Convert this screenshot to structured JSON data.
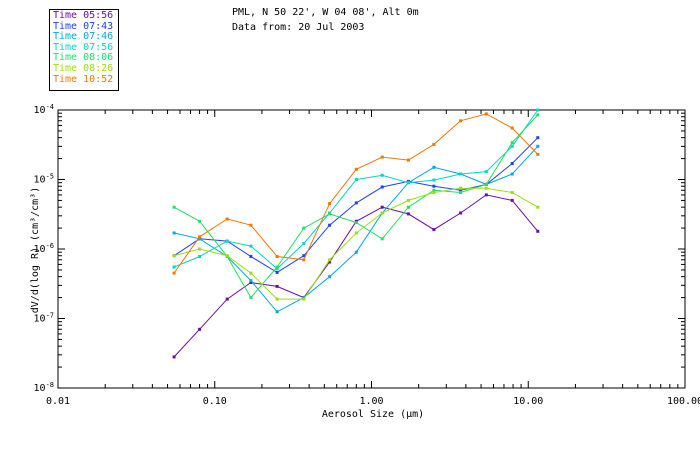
{
  "header": {
    "location": "PML, N 50 22', W 04 08', Alt 0m",
    "date_line": "Data from: 20 Jul 2003"
  },
  "colors": {
    "s0": "#6a0dad",
    "s1": "#1e40ff",
    "s2": "#00a8e0",
    "s3": "#00d8c8",
    "s4": "#22e060",
    "s5": "#99e010",
    "s6": "#f07800"
  },
  "chart_data": {
    "type": "line",
    "xlabel": "Aerosol Size (μm)",
    "ylabel": "dV/d(log R) (cm³/cm³)",
    "xscale": "log",
    "yscale": "log",
    "xlim": [
      0.01,
      100
    ],
    "ylim": [
      1e-08,
      0.0001
    ],
    "x_ticks": [
      "0.01",
      "0.10",
      "1.00",
      "10.00",
      "100.00"
    ],
    "y_ticks": [
      {
        "mant": "10",
        "exp": "-4"
      },
      {
        "mant": "10",
        "exp": "-5"
      },
      {
        "mant": "10",
        "exp": "-6"
      },
      {
        "mant": "10",
        "exp": "-7"
      },
      {
        "mant": "10",
        "exp": "-8"
      }
    ],
    "legend_position": "top-left",
    "x": [
      0.055,
      0.08,
      0.12,
      0.17,
      0.25,
      0.37,
      0.54,
      0.8,
      1.17,
      1.72,
      2.5,
      3.7,
      5.4,
      7.9,
      11.5
    ],
    "series": [
      {
        "name": "Time 05:56",
        "values": [
          2.8e-08,
          7e-08,
          1.9e-07,
          3.3e-07,
          2.9e-07,
          2e-07,
          6.5e-07,
          2.5e-06,
          4e-06,
          3.2e-06,
          1.9e-06,
          3.3e-06,
          6e-06,
          5e-06,
          1.8e-06
        ]
      },
      {
        "name": "Time 07:43",
        "values": [
          8e-07,
          1.4e-06,
          1.3e-06,
          7.8e-07,
          4.6e-07,
          8e-07,
          2.2e-06,
          4.6e-06,
          7.8e-06,
          9.4e-06,
          8e-06,
          7e-06,
          8.5e-06,
          1.7e-05,
          4e-05
        ]
      },
      {
        "name": "Time 07:46",
        "values": [
          1.7e-06,
          1.4e-06,
          7.8e-07,
          3.5e-07,
          1.25e-07,
          2e-07,
          4e-07,
          9e-07,
          3.3e-06,
          9e-06,
          1.5e-05,
          1.2e-05,
          8.5e-06,
          1.2e-05,
          3e-05
        ]
      },
      {
        "name": "Time 07:56",
        "values": [
          5.5e-07,
          7.8e-07,
          1.3e-06,
          1.1e-06,
          5.2e-07,
          1.2e-06,
          3.3e-06,
          1e-05,
          1.15e-05,
          9e-06,
          9.8e-06,
          1.2e-05,
          1.3e-05,
          3e-05,
          0.0001
        ]
      },
      {
        "name": "Time 08:06",
        "values": [
          4e-06,
          2.5e-06,
          7.8e-07,
          2e-07,
          5.5e-07,
          2e-06,
          3.2e-06,
          2.4e-06,
          1.4e-06,
          4e-06,
          7e-06,
          6.5e-06,
          8.5e-06,
          3.4e-05,
          8.5e-05
        ]
      },
      {
        "name": "Time 08:26",
        "values": [
          8e-07,
          1e-06,
          8e-07,
          4.5e-07,
          1.9e-07,
          1.9e-07,
          7e-07,
          1.7e-06,
          3.3e-06,
          5e-06,
          6.5e-06,
          7.5e-06,
          7.5e-06,
          6.5e-06,
          4e-06
        ]
      },
      {
        "name": "Time 10:52",
        "values": [
          4.5e-07,
          1.5e-06,
          2.7e-06,
          2.2e-06,
          7.8e-07,
          7e-07,
          4.5e-06,
          1.4e-05,
          2.1e-05,
          1.9e-05,
          3.2e-05,
          7e-05,
          8.8e-05,
          5.5e-05,
          2.3e-05
        ]
      }
    ]
  }
}
